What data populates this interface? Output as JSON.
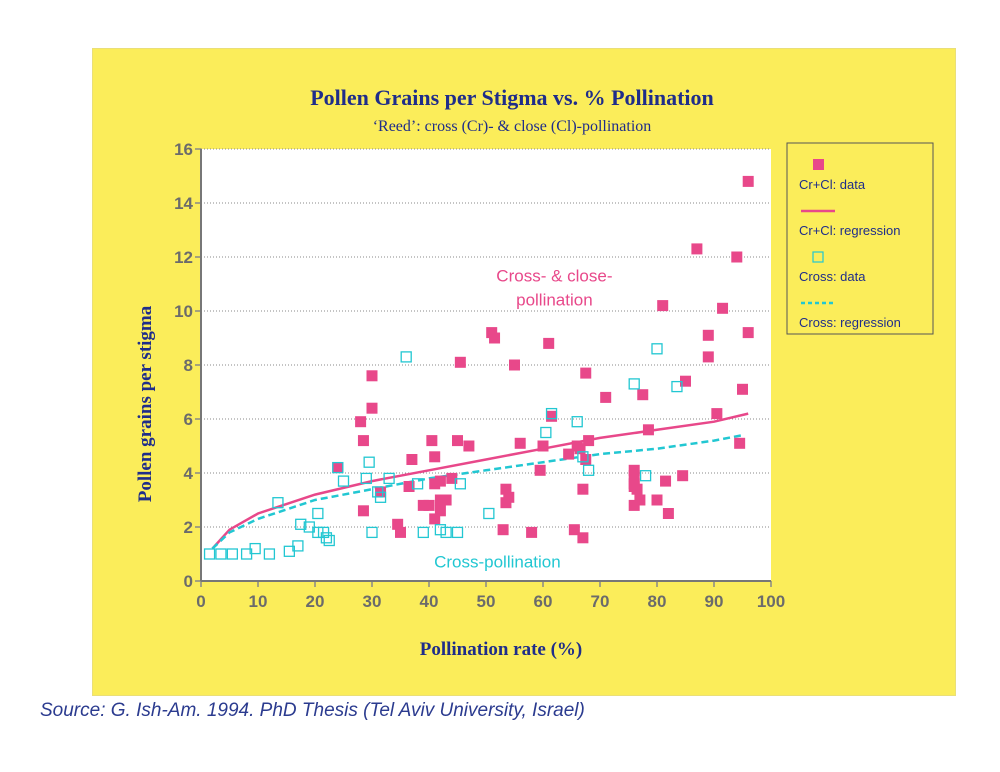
{
  "colors": {
    "panel": "#fbed5a",
    "plot_bg": "#ffffff",
    "navy": "#1f2d8a",
    "pink": "#e8488a",
    "cyan": "#22c7d2",
    "tick": "#6b6b6b"
  },
  "source": "Source: G. Ish-Am. 1994. PhD Thesis (Tel Aviv University, Israel)",
  "chart_data": {
    "type": "scatter",
    "title": "Pollen Grains per Stigma vs. % Pollination",
    "subtitle": "‘Reed’: cross (Cr)- & close (Cl)-pollination",
    "xlabel": "Pollination rate (%)",
    "ylabel": "Pollen grains per stigma",
    "xlim": [
      0,
      100
    ],
    "ylim": [
      0,
      16
    ],
    "xticks": [
      0,
      10,
      20,
      30,
      40,
      50,
      60,
      70,
      80,
      90,
      100
    ],
    "yticks": [
      0,
      2,
      4,
      6,
      8,
      10,
      12,
      14,
      16
    ],
    "grid": "horizontal dotted",
    "legend_position": "right",
    "annotations": [
      {
        "text": "Cross- & close-",
        "x": 62,
        "y": 11.1,
        "color": "pink"
      },
      {
        "text": "pollination",
        "x": 62,
        "y": 10.2,
        "color": "pink"
      },
      {
        "text": "Cross-pollination",
        "x": 52,
        "y": 0.5,
        "color": "cyan"
      }
    ],
    "legend": [
      {
        "label": "Cr+Cl: data",
        "kind": "square-filled",
        "color": "pink"
      },
      {
        "label": "Cr+Cl: regression",
        "kind": "line-solid",
        "color": "pink"
      },
      {
        "label": "Cross: data",
        "kind": "square-open",
        "color": "cyan"
      },
      {
        "label": "Cross: regression",
        "kind": "line-dashed",
        "color": "cyan"
      }
    ],
    "series": [
      {
        "name": "Cr+Cl: data",
        "style": "square-filled",
        "color": "pink",
        "points": [
          [
            24,
            4.2
          ],
          [
            28,
            5.9
          ],
          [
            28.5,
            5.2
          ],
          [
            28.5,
            2.6
          ],
          [
            30,
            7.6
          ],
          [
            30,
            6.4
          ],
          [
            31.5,
            3.3
          ],
          [
            34.5,
            2.1
          ],
          [
            35,
            1.8
          ],
          [
            36.5,
            3.5
          ],
          [
            37,
            4.5
          ],
          [
            39,
            2.8
          ],
          [
            40,
            2.8
          ],
          [
            40.5,
            5.2
          ],
          [
            41,
            4.6
          ],
          [
            41,
            3.6
          ],
          [
            41,
            2.3
          ],
          [
            42,
            3.7
          ],
          [
            42,
            3.0
          ],
          [
            42,
            2.6
          ],
          [
            43,
            3.0
          ],
          [
            44,
            3.8
          ],
          [
            45,
            5.2
          ],
          [
            45.5,
            8.1
          ],
          [
            47,
            5.0
          ],
          [
            51,
            9.2
          ],
          [
            51.5,
            9.0
          ],
          [
            53,
            1.9
          ],
          [
            53.5,
            3.4
          ],
          [
            53.5,
            2.9
          ],
          [
            54,
            3.1
          ],
          [
            55,
            8.0
          ],
          [
            56,
            5.1
          ],
          [
            58,
            1.8
          ],
          [
            59.5,
            4.1
          ],
          [
            60,
            5.0
          ],
          [
            61,
            8.8
          ],
          [
            61.5,
            6.1
          ],
          [
            64.5,
            4.7
          ],
          [
            65.5,
            1.9
          ],
          [
            66,
            5.0
          ],
          [
            66.5,
            4.9
          ],
          [
            67,
            3.4
          ],
          [
            67,
            1.6
          ],
          [
            67.5,
            4.5
          ],
          [
            67.5,
            7.7
          ],
          [
            68,
            5.2
          ],
          [
            71,
            6.8
          ],
          [
            76,
            3.6
          ],
          [
            76,
            3.5
          ],
          [
            76,
            2.8
          ],
          [
            76,
            3.9
          ],
          [
            76,
            4.1
          ],
          [
            76.5,
            3.4
          ],
          [
            77,
            3.0
          ],
          [
            77.5,
            6.9
          ],
          [
            78.5,
            5.6
          ],
          [
            80,
            3.0
          ],
          [
            81,
            10.2
          ],
          [
            81.5,
            3.7
          ],
          [
            82,
            2.5
          ],
          [
            84.5,
            3.9
          ],
          [
            85,
            7.4
          ],
          [
            87,
            12.3
          ],
          [
            89,
            9.1
          ],
          [
            89,
            8.3
          ],
          [
            90.5,
            6.2
          ],
          [
            91.5,
            10.1
          ],
          [
            94,
            12.0
          ],
          [
            94.5,
            5.1
          ],
          [
            95,
            7.1
          ],
          [
            96,
            14.8
          ],
          [
            96,
            9.2
          ]
        ]
      },
      {
        "name": "Cr+Cl: regression",
        "style": "line-solid",
        "color": "pink",
        "points": [
          [
            2,
            1.2
          ],
          [
            5,
            1.9
          ],
          [
            10,
            2.5
          ],
          [
            20,
            3.2
          ],
          [
            30,
            3.7
          ],
          [
            40,
            4.1
          ],
          [
            50,
            4.5
          ],
          [
            60,
            4.9
          ],
          [
            70,
            5.3
          ],
          [
            80,
            5.6
          ],
          [
            90,
            5.9
          ],
          [
            96,
            6.2
          ]
        ]
      },
      {
        "name": "Cross: data",
        "style": "square-open",
        "color": "cyan",
        "points": [
          [
            1.5,
            1.0
          ],
          [
            3.5,
            1.0
          ],
          [
            5.5,
            1.0
          ],
          [
            8,
            1.0
          ],
          [
            9.5,
            1.2
          ],
          [
            12,
            1.0
          ],
          [
            13.5,
            2.9
          ],
          [
            15.5,
            1.1
          ],
          [
            17,
            1.3
          ],
          [
            17.5,
            2.1
          ],
          [
            19,
            2.0
          ],
          [
            20.5,
            1.8
          ],
          [
            20.5,
            2.5
          ],
          [
            21.5,
            1.8
          ],
          [
            22,
            1.6
          ],
          [
            22.5,
            1.5
          ],
          [
            24,
            4.2
          ],
          [
            25,
            3.7
          ],
          [
            29,
            3.8
          ],
          [
            29.5,
            4.4
          ],
          [
            30,
            1.8
          ],
          [
            31,
            3.3
          ],
          [
            31.5,
            3.1
          ],
          [
            33,
            3.8
          ],
          [
            36,
            8.3
          ],
          [
            38,
            3.6
          ],
          [
            39,
            1.8
          ],
          [
            42,
            1.9
          ],
          [
            43,
            1.8
          ],
          [
            45,
            1.8
          ],
          [
            45.5,
            3.6
          ],
          [
            50.5,
            2.5
          ],
          [
            60.5,
            5.5
          ],
          [
            61.5,
            6.2
          ],
          [
            66,
            5.9
          ],
          [
            67,
            4.6
          ],
          [
            68,
            4.1
          ],
          [
            76,
            7.3
          ],
          [
            78,
            3.9
          ],
          [
            80,
            8.6
          ],
          [
            83.5,
            7.2
          ]
        ]
      },
      {
        "name": "Cross: regression",
        "style": "line-dashed",
        "color": "cyan",
        "points": [
          [
            2,
            1.2
          ],
          [
            5,
            1.8
          ],
          [
            10,
            2.3
          ],
          [
            20,
            3.0
          ],
          [
            30,
            3.4
          ],
          [
            40,
            3.8
          ],
          [
            50,
            4.1
          ],
          [
            60,
            4.4
          ],
          [
            70,
            4.7
          ],
          [
            80,
            4.9
          ],
          [
            90,
            5.2
          ],
          [
            95,
            5.4
          ]
        ]
      }
    ]
  }
}
